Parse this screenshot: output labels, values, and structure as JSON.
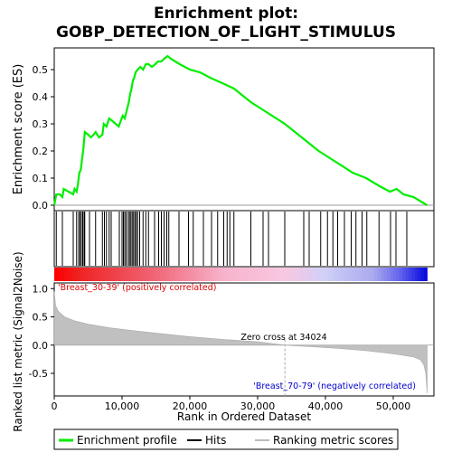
{
  "chart_data": {
    "type": "line",
    "title_line1": "Enrichment plot:",
    "title_line2": "GOBP_DETECTION_OF_LIGHT_STIMULUS",
    "es_panel": {
      "ylabel": "Enrichment score (ES)",
      "ylim": [
        -0.02,
        0.58
      ],
      "yticks": [
        0.0,
        0.1,
        0.2,
        0.3,
        0.4,
        0.5
      ],
      "ytick_labels": [
        "0.0",
        "0.1",
        "0.2",
        "0.3",
        "0.4",
        "0.5"
      ],
      "line_color": "#00ee00",
      "points": [
        [
          0,
          0.0
        ],
        [
          300,
          0.04
        ],
        [
          800,
          0.04
        ],
        [
          1200,
          0.03
        ],
        [
          1400,
          0.06
        ],
        [
          2800,
          0.04
        ],
        [
          3000,
          0.06
        ],
        [
          3300,
          0.05
        ],
        [
          3500,
          0.08
        ],
        [
          3700,
          0.12
        ],
        [
          3900,
          0.13
        ],
        [
          4100,
          0.17
        ],
        [
          4300,
          0.21
        ],
        [
          4500,
          0.27
        ],
        [
          5000,
          0.26
        ],
        [
          5400,
          0.25
        ],
        [
          5800,
          0.26
        ],
        [
          6100,
          0.27
        ],
        [
          6600,
          0.25
        ],
        [
          7100,
          0.26
        ],
        [
          7300,
          0.3
        ],
        [
          7700,
          0.29
        ],
        [
          8100,
          0.32
        ],
        [
          8600,
          0.31
        ],
        [
          9500,
          0.29
        ],
        [
          9800,
          0.31
        ],
        [
          10100,
          0.33
        ],
        [
          10400,
          0.32
        ],
        [
          10600,
          0.34
        ],
        [
          10800,
          0.36
        ],
        [
          11000,
          0.38
        ],
        [
          11200,
          0.41
        ],
        [
          11400,
          0.43
        ],
        [
          11600,
          0.46
        ],
        [
          11800,
          0.47
        ],
        [
          12000,
          0.49
        ],
        [
          12300,
          0.5
        ],
        [
          12700,
          0.51
        ],
        [
          13100,
          0.5
        ],
        [
          13500,
          0.52
        ],
        [
          13900,
          0.52
        ],
        [
          14400,
          0.51
        ],
        [
          14900,
          0.52
        ],
        [
          15300,
          0.53
        ],
        [
          15800,
          0.53
        ],
        [
          16200,
          0.54
        ],
        [
          16700,
          0.55
        ],
        [
          17200,
          0.54
        ],
        [
          18500,
          0.52
        ],
        [
          20000,
          0.5
        ],
        [
          21500,
          0.49
        ],
        [
          23000,
          0.47
        ],
        [
          24800,
          0.45
        ],
        [
          26500,
          0.43
        ],
        [
          29000,
          0.38
        ],
        [
          31500,
          0.34
        ],
        [
          34000,
          0.3
        ],
        [
          36500,
          0.25
        ],
        [
          39000,
          0.2
        ],
        [
          41500,
          0.16
        ],
        [
          44000,
          0.12
        ],
        [
          46000,
          0.1
        ],
        [
          48000,
          0.07
        ],
        [
          49500,
          0.05
        ],
        [
          50500,
          0.06
        ],
        [
          51500,
          0.04
        ],
        [
          53000,
          0.03
        ],
        [
          55000,
          0.0
        ]
      ]
    },
    "hits_x": [
      300,
      1200,
      2800,
      3300,
      3600,
      3800,
      4000,
      4200,
      4400,
      4500,
      5200,
      6100,
      7100,
      7400,
      7700,
      8100,
      8400,
      9600,
      10000,
      10200,
      10400,
      10600,
      10900,
      11100,
      11300,
      11500,
      11700,
      11900,
      12100,
      12300,
      12600,
      13100,
      13500,
      13900,
      14800,
      15400,
      15800,
      16200,
      16600,
      16900,
      18400,
      19800,
      20500,
      22000,
      23200,
      24100,
      25000,
      25500,
      25900,
      26500,
      29000,
      30800,
      31600,
      34000,
      36800,
      37600,
      39300,
      40300,
      41100,
      41800,
      42800,
      43800,
      44500,
      45400,
      46100,
      47900,
      49600,
      50400,
      52000
    ],
    "metric_panel": {
      "ylabel": "Ranked list metric (Signal2Noise)",
      "ylim": [
        -0.9,
        1.1
      ],
      "yticks": [
        -0.5,
        0.0,
        0.5,
        1.0
      ],
      "ytick_labels": [
        "-0.5",
        "0.0",
        "0.5",
        "1.0"
      ],
      "curve": [
        [
          0,
          0.95
        ],
        [
          200,
          0.7
        ],
        [
          600,
          0.6
        ],
        [
          1500,
          0.5
        ],
        [
          3000,
          0.43
        ],
        [
          5000,
          0.37
        ],
        [
          8000,
          0.31
        ],
        [
          12000,
          0.25
        ],
        [
          16000,
          0.2
        ],
        [
          20000,
          0.15
        ],
        [
          25000,
          0.1
        ],
        [
          30000,
          0.06
        ],
        [
          34024,
          0.0
        ],
        [
          38000,
          -0.03
        ],
        [
          42000,
          -0.06
        ],
        [
          46000,
          -0.1
        ],
        [
          49000,
          -0.14
        ],
        [
          51000,
          -0.17
        ],
        [
          53000,
          -0.21
        ],
        [
          54000,
          -0.26
        ],
        [
          54500,
          -0.35
        ],
        [
          54800,
          -0.5
        ],
        [
          55000,
          -0.85
        ]
      ],
      "pos_label": "'Breast_30-39' (positively correlated)",
      "neg_label": "'Breast_70-79' (negatively correlated)",
      "zero_cross_label": "Zero cross at 34024",
      "zero_cross": 34024
    },
    "xlabel": "Rank in Ordered Dataset",
    "xlim": [
      0,
      56000
    ],
    "xticks": [
      0,
      10000,
      20000,
      30000,
      40000,
      50000
    ],
    "xtick_labels": [
      "0",
      "10,000",
      "20,000",
      "30,000",
      "40,000",
      "50,000"
    ],
    "n_genes": 55000,
    "legend": {
      "items": [
        {
          "label": "Enrichment profile",
          "color": "#00ee00",
          "style": "green-line"
        },
        {
          "label": "Hits",
          "color": "#000000",
          "style": "black-line"
        },
        {
          "label": "Ranking metric scores",
          "color": "#bbbbbb",
          "style": "gray-line"
        }
      ]
    }
  }
}
